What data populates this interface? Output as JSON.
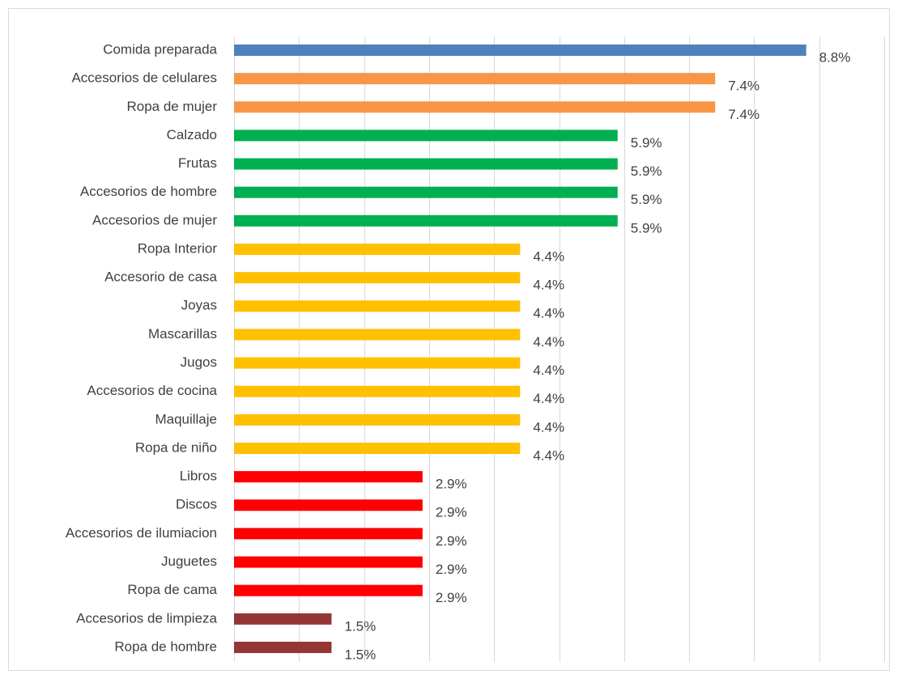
{
  "chart_data": {
    "type": "bar",
    "orientation": "horizontal",
    "categories": [
      "Comida preparada",
      "Accesorios de celulares",
      "Ropa de mujer",
      "Calzado",
      "Frutas",
      "Accesorios de hombre",
      "Accesorios de mujer",
      "Ropa Interior",
      "Accesorio de casa",
      "Joyas",
      "Mascarillas",
      "Jugos",
      "Accesorios de cocina",
      "Maquillaje",
      "Ropa de niño",
      "Libros",
      "Discos",
      "Accesorios de ilumiacion",
      "Juguetes",
      "Ropa de cama",
      "Accesorios de limpieza",
      "Ropa de hombre"
    ],
    "values": [
      8.8,
      7.4,
      7.4,
      5.9,
      5.9,
      5.9,
      5.9,
      4.4,
      4.4,
      4.4,
      4.4,
      4.4,
      4.4,
      4.4,
      4.4,
      2.9,
      2.9,
      2.9,
      2.9,
      2.9,
      1.5,
      1.5
    ],
    "value_labels": [
      "8.8%",
      "7.4%",
      "7.4%",
      "5.9%",
      "5.9%",
      "5.9%",
      "5.9%",
      "4.4%",
      "4.4%",
      "4.4%",
      "4.4%",
      "4.4%",
      "4.4%",
      "4.4%",
      "4.4%",
      "2.9%",
      "2.9%",
      "2.9%",
      "2.9%",
      "2.9%",
      "1.5%",
      "1.5%"
    ],
    "colors": [
      "#4f81bd",
      "#f79646",
      "#f79646",
      "#00b050",
      "#00b050",
      "#00b050",
      "#00b050",
      "#ffc000",
      "#ffc000",
      "#ffc000",
      "#ffc000",
      "#ffc000",
      "#ffc000",
      "#ffc000",
      "#ffc000",
      "#ff0000",
      "#ff0000",
      "#ff0000",
      "#ff0000",
      "#ff0000",
      "#943634",
      "#943634"
    ],
    "xlim": [
      0,
      10
    ],
    "xticks": [
      0,
      1,
      2,
      3,
      4,
      5,
      6,
      7,
      8,
      9,
      10
    ],
    "grid": true
  }
}
